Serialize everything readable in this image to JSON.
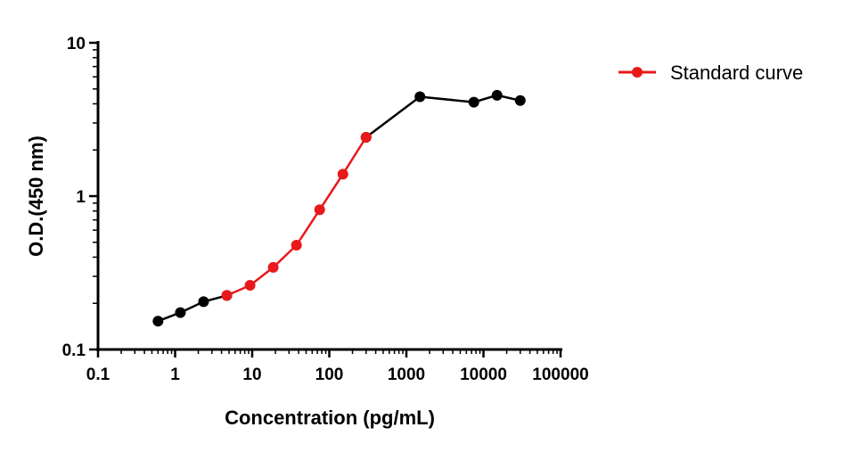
{
  "chart_data": {
    "type": "line",
    "xlabel": "Concentration (pg/mL)",
    "ylabel": "O.D.(450 nm)",
    "xscale": "log",
    "yscale": "log",
    "xlim": [
      0.1,
      100000
    ],
    "ylim": [
      0.1,
      10
    ],
    "x_ticks": [
      "0.1",
      "1",
      "10",
      "100",
      "1000",
      "10000",
      "100000"
    ],
    "y_ticks": [
      "0.1",
      "1",
      "10"
    ],
    "grid": false,
    "legend_position": "top-right",
    "series": [
      {
        "name": "Standard curve",
        "color": "#e8191a",
        "points": [
          [
            4.69,
            0.225
          ],
          [
            9.38,
            0.262
          ],
          [
            18.75,
            0.343
          ],
          [
            37.5,
            0.479
          ],
          [
            75,
            0.815
          ],
          [
            150,
            1.39
          ],
          [
            300,
            2.42
          ]
        ]
      },
      {
        "color": "#000000",
        "points": [
          [
            0.6,
            0.153
          ],
          [
            1.17,
            0.174
          ],
          [
            2.34,
            0.205
          ],
          [
            4.69,
            0.225
          ]
        ]
      },
      {
        "color": "#000000",
        "points": [
          [
            300,
            2.42
          ],
          [
            1500,
            4.45
          ],
          [
            7500,
            4.1
          ],
          [
            15000,
            4.55
          ],
          [
            30000,
            4.2
          ]
        ]
      }
    ]
  }
}
